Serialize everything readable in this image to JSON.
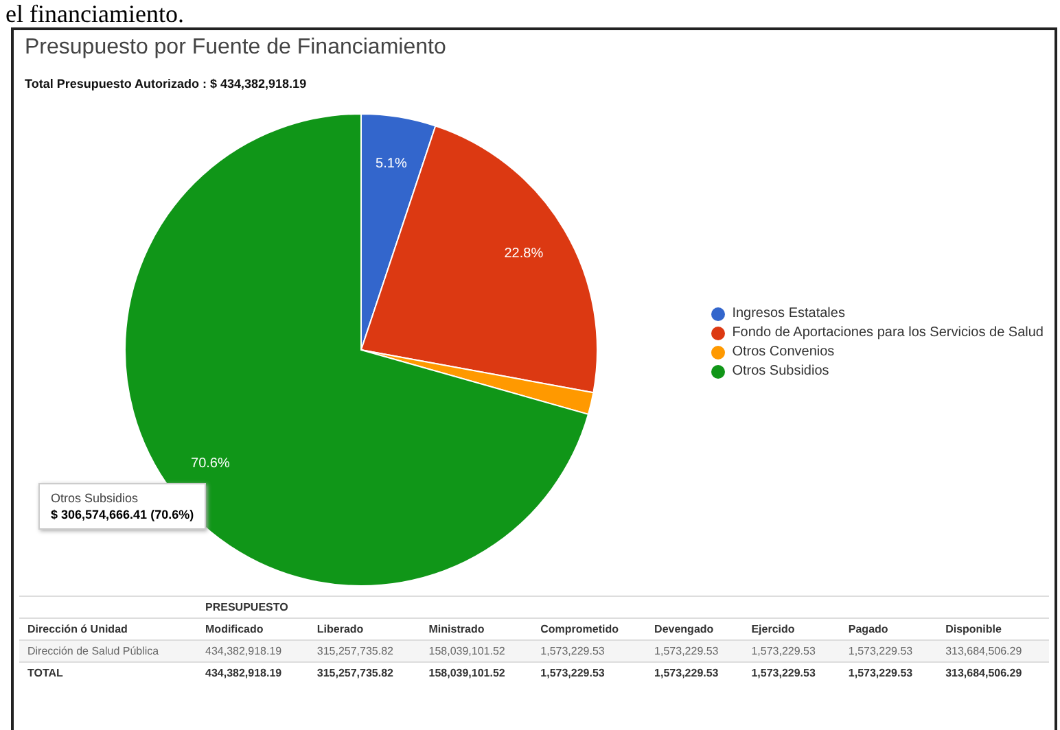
{
  "chart_data": {
    "type": "pie",
    "title": "Presupuesto por Fuente de Financiamiento",
    "subtitle": "Total Presupuesto Autorizado : $ 434,382,918.19",
    "categories": [
      "Ingresos Estatales",
      "Fondo de Aportaciones para los Servicios de Salud",
      "Otros Convenios",
      "Otros Subsidios"
    ],
    "values": [
      5.1,
      22.8,
      1.5,
      70.6
    ],
    "colors": [
      "#3366cc",
      "#dc3912",
      "#ff9900",
      "#109618"
    ],
    "value_labels": [
      "5.1%",
      "22.8%",
      null,
      "70.6%"
    ],
    "legend": "right",
    "annotations": [
      "el financiamiento.",
      "Otros Subsidios",
      "$ 306,574,666.41 (70.6%)",
      "PRESUPUESTO",
      "Dirección ó Unidad",
      "Modificado",
      "Liberado",
      "Ministrado",
      "Comprometido",
      "Devengado",
      "Ejercido",
      "Pagado",
      "Disponible",
      "Dirección de Salud Pública",
      "434,382,918.19",
      "315,257,735.82",
      "158,039,101.52",
      "1,573,229.53",
      "1,573,229.53",
      "1,573,229.53",
      "1,573,229.53",
      "313,684,506.29",
      "TOTAL",
      "434,382,918.19",
      "315,257,735.82",
      "158,039,101.52",
      "1,573,229.53",
      "1,573,229.53",
      "1,573,229.53",
      "1,573,229.53",
      "313,684,506.29"
    ]
  }
}
